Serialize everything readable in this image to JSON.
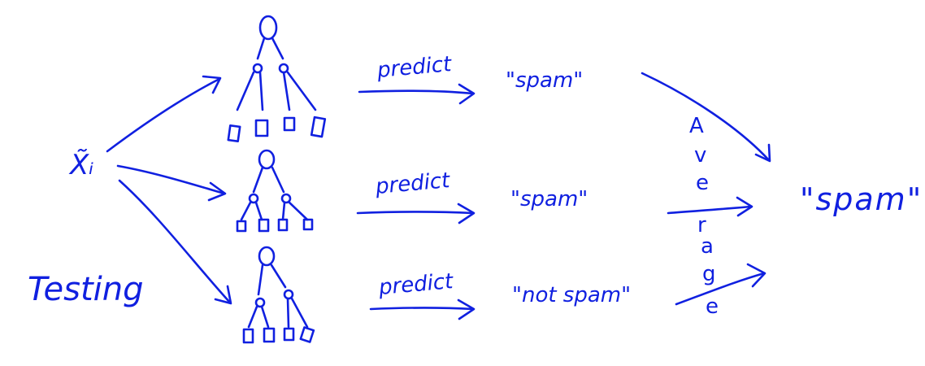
{
  "input_label": "X̃ᵢ",
  "phase_label": "Testing",
  "predict_labels": [
    "predict",
    "predict",
    "predict"
  ],
  "tree_outputs": [
    "\"spam\"",
    "\"spam\"",
    "\"not spam\""
  ],
  "aggregate_letters": [
    "A",
    "v",
    "e",
    "r",
    "a",
    "g",
    "e"
  ],
  "final_output": "\"spam\"",
  "ink_color": "#1020e0"
}
